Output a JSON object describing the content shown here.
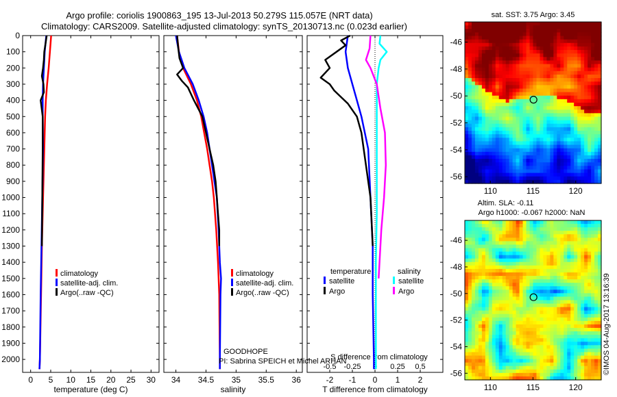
{
  "title_line1": "Argo profile: coriolis 1900863_195 13-Jul-2013 50.279S 115.057E (NRT data)",
  "title_line2": "Climatology: CARS2009. Satellite-adjusted climatology: synTS_20130713.nc (0.023d earlier)",
  "credit": "©IMOS 04-Aug-2017 13:16:39",
  "goodhope_label": "GOODHOPE",
  "pi_label": "PI: Sabrina SPEICH et Michel ARHAN",
  "colors": {
    "climatology": "#ff0000",
    "satellite": "#0000ff",
    "argo": "#000000",
    "sal_satellite": "#00ffff",
    "sal_argo": "#ff00ff"
  },
  "chart_data": [
    {
      "type": "line",
      "xlabel": "temperature (deg C)",
      "ylabel": "",
      "xlim": [
        -2,
        32
      ],
      "ylim": [
        2080,
        0
      ],
      "xticks": [
        0,
        5,
        10,
        15,
        20,
        25,
        30
      ],
      "yticks": [
        0,
        100,
        200,
        300,
        400,
        500,
        600,
        700,
        800,
        900,
        1000,
        1100,
        1200,
        1300,
        1400,
        1500,
        1600,
        1700,
        1800,
        1900,
        2000
      ],
      "legend": [
        "climatology",
        "satellite-adj. clim.",
        "Argo(..raw -QC)"
      ],
      "legend_position": "lower-center",
      "series": [
        {
          "name": "climatology",
          "depth": [
            0,
            100,
            200,
            300,
            400,
            500,
            700,
            1000,
            1300,
            1600,
            2000,
            2060
          ],
          "values": [
            5.1,
            4.8,
            4.5,
            4.1,
            3.8,
            3.6,
            3.4,
            3.1,
            2.8,
            2.6,
            2.3,
            2.2
          ]
        },
        {
          "name": "satellite-adj. clim.",
          "depth": [
            0,
            100,
            200,
            300,
            400,
            500,
            700,
            1000,
            1300,
            1600,
            2000,
            2060
          ],
          "values": [
            3.9,
            3.5,
            3.3,
            3.1,
            3.0,
            3.0,
            3.1,
            2.9,
            2.7,
            2.5,
            2.3,
            2.2
          ]
        },
        {
          "name": "Argo(..raw -QC)",
          "depth": [
            0,
            50,
            100,
            150,
            200,
            250,
            300,
            350,
            400,
            500,
            700,
            1000,
            1300
          ],
          "values": [
            4.0,
            3.7,
            3.4,
            3.3,
            3.1,
            2.8,
            3.2,
            3.3,
            2.5,
            3.0,
            3.0,
            2.9,
            2.8
          ]
        }
      ]
    },
    {
      "type": "line",
      "xlabel": "salinity",
      "ylabel": "",
      "xlim": [
        33.8,
        36.1
      ],
      "ylim": [
        2080,
        0
      ],
      "xticks": [
        34,
        34.5,
        35,
        35.5,
        36
      ],
      "legend": [
        "climatology",
        "satellite-adj. clim.",
        "Argo(..raw -QC)"
      ],
      "legend_position": "lower-center",
      "series": [
        {
          "name": "climatology",
          "depth": [
            0,
            100,
            200,
            300,
            400,
            500,
            600,
            700,
            800,
            900,
            1000,
            1200,
            1400,
            1600,
            2000,
            2060
          ],
          "values": [
            34.02,
            34.05,
            34.12,
            34.25,
            34.35,
            34.42,
            34.47,
            34.52,
            34.56,
            34.6,
            34.63,
            34.67,
            34.7,
            34.72,
            34.73,
            34.73
          ]
        },
        {
          "name": "satellite-adj. clim.",
          "depth": [
            0,
            100,
            200,
            300,
            400,
            500,
            600,
            700,
            800,
            900,
            1000,
            1200,
            1400,
            1500,
            1600,
            2000,
            2060
          ],
          "values": [
            34.0,
            34.05,
            34.14,
            34.28,
            34.38,
            34.46,
            34.52,
            34.56,
            34.6,
            34.64,
            34.68,
            34.71,
            34.73,
            34.75,
            34.74,
            34.73,
            34.73
          ]
        },
        {
          "name": "Argo(..raw -QC)",
          "depth": [
            0,
            80,
            140,
            200,
            240,
            280,
            320,
            400,
            500,
            600,
            700,
            800,
            900,
            1000,
            1100,
            1200,
            1300
          ],
          "values": [
            34.02,
            34.04,
            34.06,
            34.12,
            34.02,
            34.1,
            34.2,
            34.3,
            34.44,
            34.5,
            34.56,
            34.62,
            34.66,
            34.68,
            34.7,
            34.72,
            34.72
          ]
        }
      ]
    },
    {
      "type": "line",
      "xlabel": "T difference from climatology",
      "xlabel_top": "S difference from climatology",
      "xlim": [
        -3,
        3
      ],
      "ylim": [
        2080,
        0
      ],
      "xticks": [
        -2,
        -1,
        0,
        1,
        2
      ],
      "xticks_salinity": [
        -0.5,
        -0.25,
        0,
        0.25,
        0.5
      ],
      "legend_headers": [
        "temperature",
        "salinity"
      ],
      "legend": [
        "satellite",
        "Argo",
        "satellite",
        "Argo"
      ],
      "legend_position": "lower-center",
      "series": [
        {
          "name": "satellite",
          "group": "temperature",
          "depth": [
            0,
            100,
            200,
            300,
            400,
            500,
            700,
            1000,
            1300,
            1600,
            2000,
            2060
          ],
          "values": [
            -1.2,
            -1.3,
            -1.2,
            -1.0,
            -0.8,
            -0.6,
            -0.3,
            -0.2,
            -0.1,
            -0.1,
            -0.05,
            -0.05
          ]
        },
        {
          "name": "Argo",
          "group": "temperature",
          "depth": [
            0,
            30,
            60,
            100,
            150,
            200,
            260,
            300,
            340,
            380,
            420,
            500,
            600,
            800,
            1000,
            1300
          ],
          "values": [
            -1.1,
            -1.5,
            -1.3,
            -1.7,
            -2.2,
            -2.0,
            -2.4,
            -2.0,
            -1.8,
            -1.5,
            -1.2,
            -0.8,
            -0.6,
            -0.4,
            -0.2,
            -0.1
          ]
        },
        {
          "name": "satellite",
          "group": "salinity",
          "depth": [
            0,
            50,
            100,
            150,
            200,
            300,
            500,
            800,
            1100,
            1400,
            1700,
            2000,
            2060
          ],
          "values": [
            0.06,
            0.05,
            0.13,
            0.06,
            0.04,
            0.02,
            0.02,
            0.02,
            0.02,
            0.01,
            0.01,
            0.01,
            0.01
          ]
        },
        {
          "name": "Argo",
          "group": "salinity",
          "depth": [
            0,
            80,
            150,
            200,
            300,
            450,
            600,
            800,
            1000,
            1200,
            1500
          ],
          "values": [
            -0.05,
            -0.06,
            -0.1,
            -0.05,
            0.02,
            0.06,
            0.11,
            0.12,
            0.1,
            0.07,
            0.04
          ]
        }
      ]
    },
    {
      "type": "heatmap",
      "title": "sat. SST: 3.75 Argo: 3.45",
      "xlim": [
        107,
        123
      ],
      "ylim": [
        -56.5,
        -44.5
      ],
      "xticks": [
        110,
        115,
        120
      ],
      "yticks": [
        -46,
        -48,
        -50,
        -52,
        -54,
        -56
      ],
      "marker": {
        "lon": 115.057,
        "lat": -50.279
      }
    },
    {
      "type": "heatmap",
      "title_line1": "Altim. SLA: -0.11",
      "title_line2": "Argo h1000: -0.067 h2000: NaN",
      "xlim": [
        107,
        123
      ],
      "ylim": [
        -56.5,
        -44.5
      ],
      "xticks": [
        110,
        115,
        120
      ],
      "yticks": [
        -46,
        -48,
        -50,
        -52,
        -54,
        -56
      ],
      "marker": {
        "lon": 115.057,
        "lat": -50.279
      }
    }
  ]
}
